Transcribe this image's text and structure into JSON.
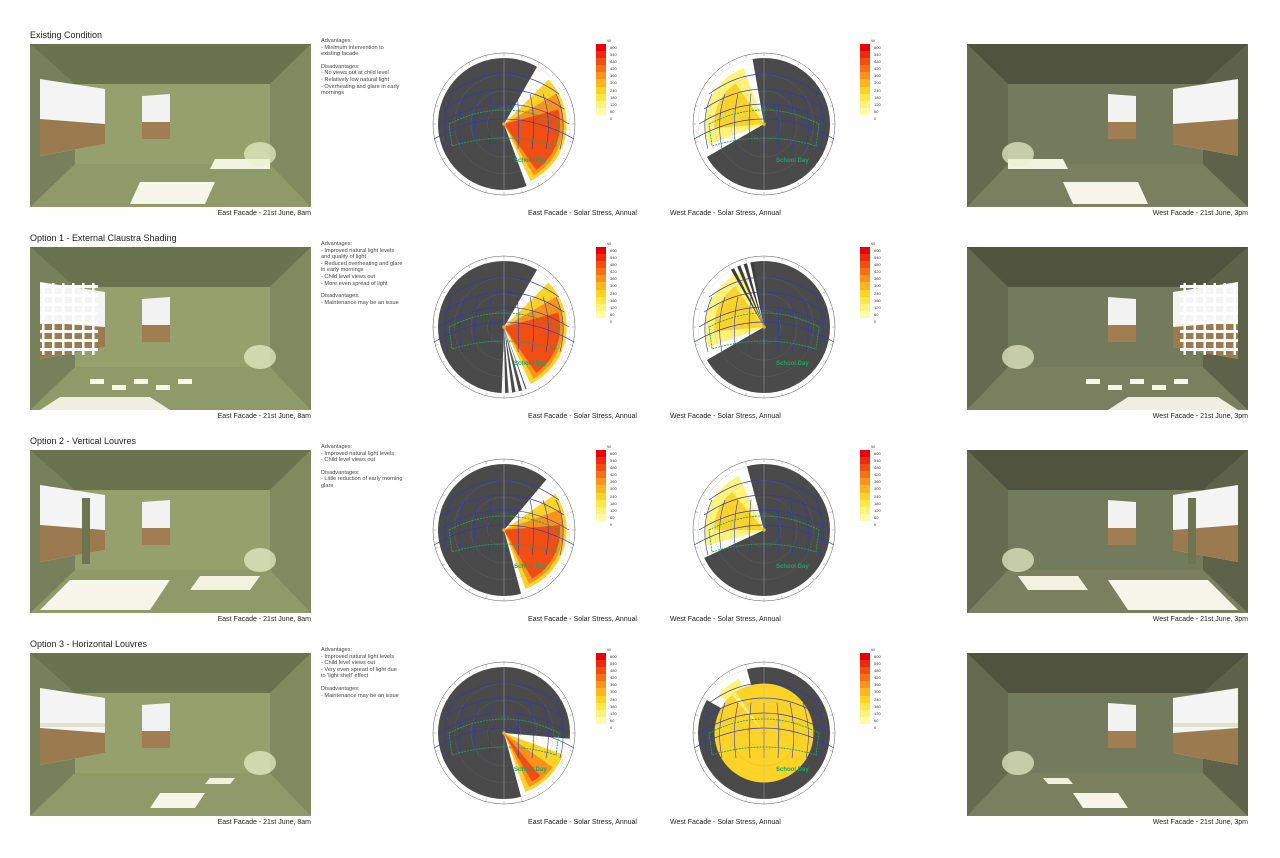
{
  "legend": {
    "unit": "W",
    "values": [
      "600",
      "540",
      "480",
      "420",
      "360",
      "300",
      "240",
      "180",
      "120",
      "60",
      "0"
    ],
    "colors": [
      "#e8000a",
      "#ee2a0e",
      "#f24d12",
      "#f67016",
      "#f9931b",
      "#fbb520",
      "#fdd327",
      "#fde84a",
      "#fef37a",
      "#fffaa8",
      "#ffffff"
    ]
  },
  "diagram_labels": {
    "school_day": "School Day"
  },
  "rows": [
    {
      "title": "Existing Condition",
      "notes": [
        {
          "text": "Advantages:",
          "hd": true
        },
        {
          "text": "- Minimum intervention to existing facade"
        },
        {
          "gap": true
        },
        {
          "text": "Disadvantages:",
          "hd": true
        },
        {
          "text": "- No views out at child level"
        },
        {
          "text": "- Relatively low natural light"
        },
        {
          "text": "- Overheating and glare in early mornings"
        }
      ],
      "left_caption": "East Facade - 21st June, 8am",
      "east_caption": "East Facade - Solar Stress, Annual",
      "west_caption": "West Facade - Solar Stress, Annual",
      "right_caption": "West Facade - 21st June, 3pm"
    },
    {
      "title": "Option 1 - External Claustra Shading",
      "notes": [
        {
          "text": "Advantages:",
          "hd": true
        },
        {
          "text": "- Improved natural light levels and quality of light"
        },
        {
          "text": "- Reduced overheating and glare in early mornings"
        },
        {
          "text": "- Child level views out"
        },
        {
          "text": "- More even spread of light"
        },
        {
          "gap": true
        },
        {
          "text": "Disadvantages:",
          "hd": true
        },
        {
          "text": "- Maintenance may be an issue"
        }
      ],
      "left_caption": "East Facade - 21st June, 8am",
      "east_caption": "East Facade - Solar Stress, Annual",
      "west_caption": "West Facade - Solar Stress, Annual",
      "right_caption": "West Facade - 21st June, 3pm"
    },
    {
      "title": "Option 2 - Vertical Louvres",
      "notes": [
        {
          "text": "Advantages:",
          "hd": true
        },
        {
          "text": "- Improved natural light levels"
        },
        {
          "text": "- Child level views out"
        },
        {
          "gap": true
        },
        {
          "text": "Disadvantages:",
          "hd": true
        },
        {
          "text": "- Little reduction of early morning glare"
        }
      ],
      "left_caption": "East Facade - 21st June, 8am",
      "east_caption": "East Facade - Solar Stress, Annual",
      "west_caption": "West Facade - Solar Stress, Annual",
      "right_caption": "West Facade - 21st June, 3pm"
    },
    {
      "title": "Option 3 - Horizontal Louvres",
      "notes": [
        {
          "text": "Advantages:",
          "hd": true
        },
        {
          "text": "- Improved natural light levels"
        },
        {
          "text": "- Child level views out"
        },
        {
          "text": "- Very even spread of light due to 'light shelf' effect"
        },
        {
          "gap": true
        },
        {
          "text": "Disadvantages:",
          "hd": true
        },
        {
          "text": "- Maintenance may be an issue"
        }
      ],
      "left_caption": "East Facade - 21st June, 8am",
      "east_caption": "East Facade - Solar Stress, Annual",
      "west_caption": "West Facade - Solar Stress, Annual",
      "right_caption": "West Facade - 21st June, 3pm"
    }
  ]
}
